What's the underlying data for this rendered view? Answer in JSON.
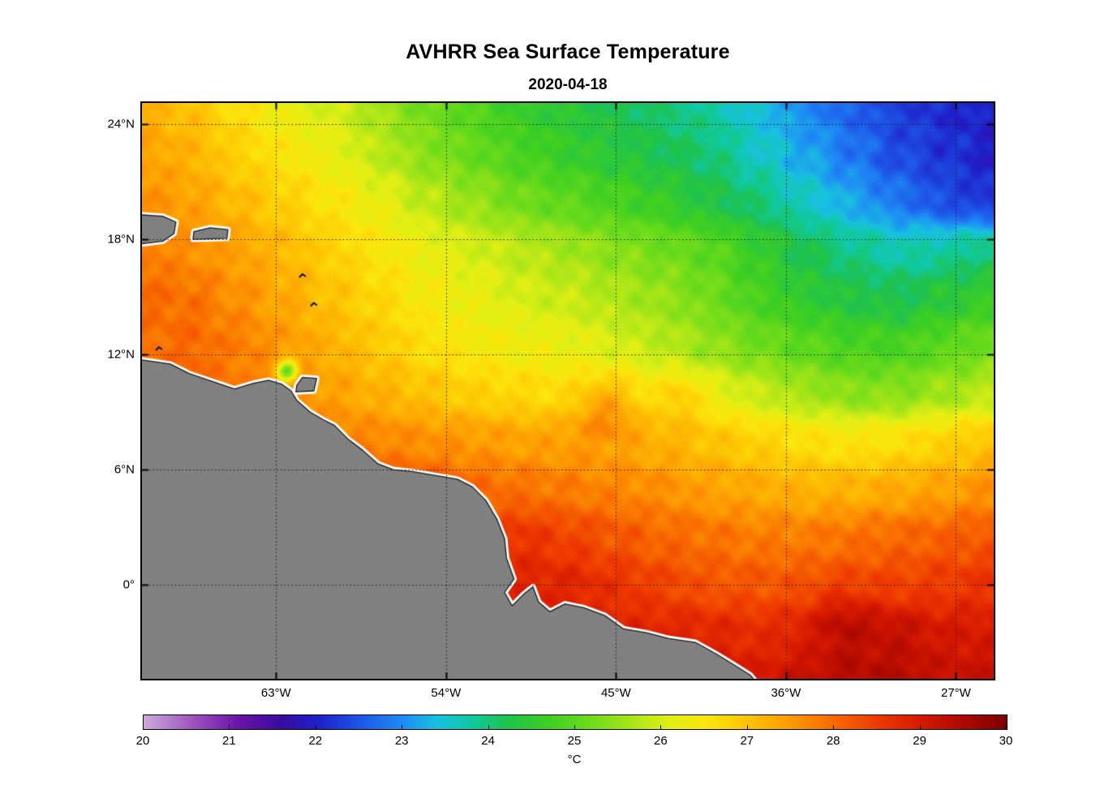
{
  "chart_data": {
    "type": "heatmap",
    "title": "AVHRR Sea Surface Temperature",
    "date": "2020-04-18",
    "grid_on": true,
    "gridline_style": "dotted",
    "x_axis": {
      "range": [
        -70.1,
        -25.0
      ],
      "ticks": [
        {
          "lon": -63,
          "label": "63°W"
        },
        {
          "lon": -54,
          "label": "54°W"
        },
        {
          "lon": -45,
          "label": "45°W"
        },
        {
          "lon": -36,
          "label": "36°W"
        },
        {
          "lon": -27,
          "label": "27°W"
        }
      ]
    },
    "y_axis": {
      "range": [
        -4.9,
        25.1
      ],
      "ticks": [
        {
          "lat": 24,
          "label": "24°N"
        },
        {
          "lat": 18,
          "label": "18°N"
        },
        {
          "lat": 12,
          "label": "12°N"
        },
        {
          "lat": 6,
          "label": "6°N"
        },
        {
          "lat": 0,
          "label": "0°"
        }
      ]
    },
    "grid": {
      "lons": [
        -70,
        -67.5,
        -65,
        -62.5,
        -60,
        -57.5,
        -55,
        -52.5,
        -50,
        -47.5,
        -45,
        -42.5,
        -40,
        -37.5,
        -35,
        -32.5,
        -30,
        -27.5,
        -25
      ],
      "lats": [
        25,
        22.5,
        20,
        17.5,
        15,
        12.5,
        10,
        7.5,
        5,
        2.5,
        0,
        -2.5,
        -5
      ],
      "sst": [
        [
          27.2,
          27.0,
          26.6,
          26.2,
          26.0,
          25.6,
          25.2,
          24.9,
          24.6,
          24.4,
          24.2,
          24.0,
          23.8,
          23.4,
          23.0,
          22.6,
          22.3,
          22.1,
          22.0
        ],
        [
          27.4,
          27.2,
          26.8,
          26.5,
          26.2,
          25.8,
          25.4,
          25.1,
          24.8,
          24.6,
          24.4,
          24.2,
          24.0,
          23.6,
          23.2,
          22.8,
          22.4,
          22.2,
          22.0
        ],
        [
          27.6,
          27.4,
          27.1,
          26.8,
          26.5,
          26.2,
          25.8,
          25.5,
          25.2,
          25.0,
          24.8,
          24.6,
          24.3,
          24.0,
          23.6,
          23.2,
          22.8,
          22.4,
          22.2
        ],
        [
          27.8,
          27.6,
          27.4,
          27.1,
          26.8,
          26.5,
          26.2,
          26.0,
          25.8,
          25.6,
          25.4,
          25.2,
          25.0,
          24.6,
          24.2,
          23.9,
          23.7,
          23.8,
          24.0
        ],
        [
          28.0,
          27.9,
          27.6,
          27.3,
          27.0,
          26.7,
          26.4,
          26.2,
          26.0,
          25.9,
          25.7,
          25.5,
          25.2,
          24.8,
          24.5,
          24.3,
          24.2,
          24.4,
          24.6
        ],
        [
          27.9,
          28.0,
          27.8,
          27.5,
          27.2,
          26.9,
          26.6,
          26.4,
          26.3,
          26.2,
          26.0,
          25.8,
          25.5,
          25.2,
          25.0,
          24.8,
          24.8,
          25.0,
          25.2
        ],
        [
          28.0,
          28.0,
          27.8,
          27.6,
          27.4,
          27.2,
          27.0,
          26.8,
          26.7,
          26.6,
          26.6,
          26.4,
          26.2,
          25.9,
          25.6,
          25.4,
          25.4,
          25.6,
          25.8
        ],
        [
          28.2,
          28.2,
          28.0,
          27.9,
          27.8,
          27.7,
          27.6,
          27.5,
          27.4,
          27.4,
          27.3,
          27.2,
          27.0,
          26.8,
          26.6,
          26.5,
          26.6,
          26.8,
          27.0
        ],
        [
          28.4,
          28.4,
          28.3,
          28.3,
          28.3,
          28.2,
          28.2,
          28.0,
          27.9,
          27.8,
          27.7,
          27.6,
          27.4,
          27.3,
          27.2,
          27.2,
          27.3,
          27.4,
          27.6
        ],
        [
          28.5,
          28.5,
          28.5,
          28.5,
          28.5,
          28.4,
          28.4,
          28.3,
          28.6,
          28.4,
          28.2,
          28.0,
          27.9,
          27.8,
          27.8,
          27.9,
          28.0,
          28.1,
          28.2
        ],
        [
          28.6,
          28.6,
          28.6,
          28.6,
          28.6,
          28.6,
          28.6,
          28.7,
          28.8,
          28.8,
          28.6,
          28.4,
          28.2,
          28.2,
          28.2,
          28.3,
          28.4,
          28.5,
          28.6
        ],
        [
          28.7,
          28.7,
          28.7,
          28.7,
          28.7,
          28.7,
          28.7,
          28.8,
          28.8,
          28.8,
          28.8,
          28.8,
          28.8,
          28.7,
          28.8,
          29.0,
          29.2,
          29.0,
          29.0
        ],
        [
          28.8,
          28.8,
          28.8,
          28.8,
          28.8,
          28.8,
          28.8,
          28.8,
          28.9,
          28.9,
          29.0,
          29.0,
          29.0,
          29.0,
          29.2,
          29.4,
          29.4,
          29.2,
          29.2
        ]
      ]
    },
    "anomalies": [
      {
        "lon": -62.4,
        "lat": 11.15,
        "r": 0.55,
        "delta": -2.4
      },
      {
        "lon": -45.5,
        "lat": 9.2,
        "r": 1.6,
        "delta": 0.7
      },
      {
        "lon": -41.5,
        "lat": 9.8,
        "r": 1.2,
        "delta": 0.5
      },
      {
        "lon": -33.0,
        "lat": -1.8,
        "r": 1.9,
        "delta": 0.45
      }
    ],
    "land": {
      "fill": "#808080",
      "halo": "#ffffff",
      "edge": "#1a1a1a",
      "mainland": [
        [
          -72,
          11.9
        ],
        [
          -70,
          11.7
        ],
        [
          -68.6,
          11.5
        ],
        [
          -67.6,
          11.0
        ],
        [
          -66.4,
          10.6
        ],
        [
          -65.2,
          10.2
        ],
        [
          -64.2,
          10.5
        ],
        [
          -63.4,
          10.65
        ],
        [
          -62.7,
          10.45
        ],
        [
          -62.2,
          10.1
        ],
        [
          -61.9,
          9.6
        ],
        [
          -61.2,
          9.0
        ],
        [
          -60.5,
          8.6
        ],
        [
          -59.9,
          8.3
        ],
        [
          -59.2,
          7.6
        ],
        [
          -58.4,
          7.0
        ],
        [
          -57.6,
          6.3
        ],
        [
          -56.8,
          6.0
        ],
        [
          -55.8,
          5.9
        ],
        [
          -54.6,
          5.7
        ],
        [
          -53.4,
          5.5
        ],
        [
          -52.6,
          5.1
        ],
        [
          -51.9,
          4.4
        ],
        [
          -51.3,
          3.4
        ],
        [
          -50.9,
          2.4
        ],
        [
          -50.8,
          1.4
        ],
        [
          -50.4,
          0.3
        ],
        [
          -50.9,
          -0.4
        ],
        [
          -50.5,
          -1.1
        ],
        [
          -49.9,
          -0.5
        ],
        [
          -49.4,
          -0.1
        ],
        [
          -49.1,
          -0.9
        ],
        [
          -48.5,
          -1.4
        ],
        [
          -47.7,
          -1.0
        ],
        [
          -46.7,
          -1.2
        ],
        [
          -45.6,
          -1.6
        ],
        [
          -44.6,
          -2.3
        ],
        [
          -43.4,
          -2.5
        ],
        [
          -42.2,
          -2.8
        ],
        [
          -40.8,
          -3.0
        ],
        [
          -39.7,
          -3.6
        ],
        [
          -38.7,
          -4.2
        ],
        [
          -37.9,
          -4.7
        ],
        [
          -37.3,
          -5.4
        ],
        [
          -37.0,
          -6.2
        ],
        [
          -72.0,
          -6.2
        ]
      ],
      "islands": [
        [
          [
            -70.6,
            17.7
          ],
          [
            -69.0,
            17.9
          ],
          [
            -68.4,
            18.3
          ],
          [
            -68.3,
            18.9
          ],
          [
            -69.0,
            19.2
          ],
          [
            -70.6,
            19.3
          ]
        ],
        [
          [
            -67.4,
            18.0
          ],
          [
            -65.6,
            18.05
          ],
          [
            -65.55,
            18.5
          ],
          [
            -66.5,
            18.6
          ],
          [
            -67.35,
            18.4
          ]
        ],
        [
          [
            -61.95,
            10.05
          ],
          [
            -61.0,
            10.1
          ],
          [
            -60.85,
            10.75
          ],
          [
            -61.6,
            10.8
          ],
          [
            -61.9,
            10.4
          ]
        ]
      ],
      "specks": [
        {
          "lon": -69.2,
          "lat": 12.3
        },
        {
          "lon": -61.6,
          "lat": 16.1
        },
        {
          "lon": -61.0,
          "lat": 14.6
        }
      ]
    },
    "colorbar": {
      "min": 20,
      "max": 30,
      "unit": "°C",
      "ticks": [
        20,
        21,
        22,
        23,
        24,
        25,
        26,
        27,
        28,
        29,
        30
      ],
      "stops": [
        {
          "v": 20.0,
          "c": "#CDA9D8"
        },
        {
          "v": 20.6,
          "c": "#9A4FBE"
        },
        {
          "v": 21.1,
          "c": "#6A14A6"
        },
        {
          "v": 21.6,
          "c": "#3A0BA0"
        },
        {
          "v": 22.0,
          "c": "#1F1EC8"
        },
        {
          "v": 22.5,
          "c": "#1E55E8"
        },
        {
          "v": 23.0,
          "c": "#1E8CF5"
        },
        {
          "v": 23.4,
          "c": "#18C0E0"
        },
        {
          "v": 23.8,
          "c": "#10C9A0"
        },
        {
          "v": 24.2,
          "c": "#1EC24E"
        },
        {
          "v": 24.7,
          "c": "#3ECF22"
        },
        {
          "v": 25.2,
          "c": "#6FDC1A"
        },
        {
          "v": 25.7,
          "c": "#AEE617"
        },
        {
          "v": 26.1,
          "c": "#E2EF14"
        },
        {
          "v": 26.5,
          "c": "#FBE60C"
        },
        {
          "v": 27.0,
          "c": "#FDC303"
        },
        {
          "v": 27.5,
          "c": "#FD9A02"
        },
        {
          "v": 28.0,
          "c": "#F86800"
        },
        {
          "v": 28.5,
          "c": "#EE3A00"
        },
        {
          "v": 29.0,
          "c": "#D61800"
        },
        {
          "v": 29.5,
          "c": "#AE0900"
        },
        {
          "v": 30.0,
          "c": "#7C0000"
        }
      ]
    }
  }
}
